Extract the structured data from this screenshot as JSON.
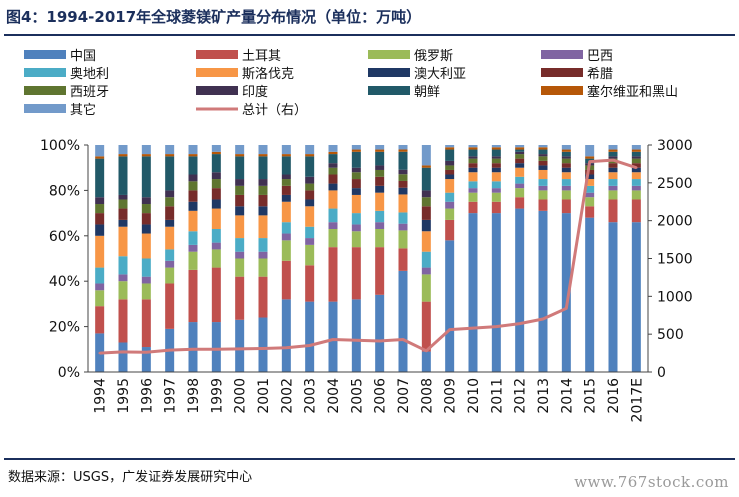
{
  "header": {
    "title": "图4：1994-2017年全球菱镁矿产量分布情况（单位：万吨）"
  },
  "footer": {
    "source": "数据来源：USGS，广发证券发展研究中心",
    "watermark": "www.767stock.com"
  },
  "chart_data": {
    "type": "bar",
    "stacked": true,
    "categories": [
      "1994",
      "1995",
      "1996",
      "1997",
      "1998",
      "1999",
      "2000",
      "2001",
      "2002",
      "2003",
      "2004",
      "2005",
      "2006",
      "2007",
      "2008",
      "2009",
      "2010",
      "2011",
      "2012",
      "2013",
      "2014",
      "2015",
      "2016",
      "2017E"
    ],
    "ylim_left": [
      0,
      100
    ],
    "yticks_left": [
      "0%",
      "20%",
      "40%",
      "60%",
      "80%",
      "100%"
    ],
    "ylim_right": [
      0,
      3000
    ],
    "yticks_right": [
      "0",
      "500",
      "1000",
      "1500",
      "2000",
      "2500",
      "3000"
    ],
    "legend_position": "top",
    "series": [
      {
        "name": "中国",
        "color": "#4f81bd",
        "values": [
          17,
          13,
          11,
          19,
          22,
          22,
          23,
          24,
          32,
          31,
          31,
          32,
          34,
          45,
          9,
          58,
          70,
          70,
          72,
          71,
          70,
          68,
          66,
          66
        ]
      },
      {
        "name": "土耳其",
        "color": "#c0504d",
        "values": [
          12,
          19,
          21,
          20,
          23,
          24,
          19,
          18,
          17,
          16,
          24,
          23,
          21,
          10,
          22,
          9,
          5,
          5,
          5,
          5,
          6,
          5,
          10,
          10
        ]
      },
      {
        "name": "俄罗斯",
        "color": "#9bbb59",
        "values": [
          7,
          8,
          7,
          7,
          8,
          8,
          8,
          8,
          9,
          9,
          8,
          7,
          8,
          8,
          12,
          5,
          4,
          4,
          4,
          4,
          4,
          4,
          4,
          4
        ]
      },
      {
        "name": "巴西",
        "color": "#8064a2",
        "values": [
          3,
          3,
          3,
          3,
          3,
          3,
          3,
          3,
          3,
          3,
          3,
          3,
          3,
          3,
          3,
          3,
          2,
          2,
          2,
          2,
          2,
          2,
          2,
          2
        ]
      },
      {
        "name": "奥地利",
        "color": "#4bacc6",
        "values": [
          7,
          8,
          8,
          5,
          6,
          6,
          6,
          6,
          5,
          5,
          6,
          5,
          5,
          5,
          7,
          4,
          3,
          3,
          3,
          3,
          3,
          3,
          3,
          3
        ]
      },
      {
        "name": "斯洛伐克",
        "color": "#f79646",
        "values": [
          14,
          13,
          11,
          10,
          9,
          9,
          10,
          10,
          9,
          9,
          8,
          8,
          8,
          8,
          9,
          6,
          4,
          4,
          4,
          4,
          3,
          3,
          3,
          3
        ]
      },
      {
        "name": "澳大利亚",
        "color": "#1f3864",
        "values": [
          5,
          3,
          4,
          3,
          4,
          4,
          4,
          4,
          3,
          3,
          3,
          3,
          3,
          3,
          5,
          2,
          2,
          2,
          2,
          2,
          2,
          2,
          2,
          2
        ]
      },
      {
        "name": "希腊",
        "color": "#772c2a",
        "values": [
          5,
          5,
          5,
          6,
          5,
          5,
          5,
          5,
          4,
          4,
          4,
          4,
          4,
          3,
          6,
          2,
          2,
          2,
          2,
          2,
          2,
          2,
          2,
          2
        ]
      },
      {
        "name": "西班牙",
        "color": "#5f7530",
        "values": [
          4,
          4,
          4,
          4,
          4,
          4,
          4,
          4,
          3,
          3,
          3,
          3,
          3,
          3,
          4,
          2,
          2,
          2,
          2,
          2,
          2,
          2,
          2,
          2
        ]
      },
      {
        "name": "印度",
        "color": "#403151",
        "values": [
          3,
          2,
          3,
          3,
          3,
          3,
          3,
          3,
          2,
          3,
          2,
          2,
          2,
          2,
          3,
          2,
          1,
          1,
          1,
          1,
          1,
          1,
          1,
          1
        ]
      },
      {
        "name": "朝鲜",
        "color": "#215968",
        "values": [
          17,
          17,
          18,
          15,
          8,
          8,
          10,
          10,
          8,
          9,
          4,
          7,
          6,
          8,
          10,
          5,
          3,
          3,
          1,
          2,
          2,
          2,
          2,
          2
        ]
      },
      {
        "name": "塞尔维亚和黑山",
        "color": "#b65708",
        "values": [
          1,
          1,
          1,
          1,
          1,
          1,
          1,
          1,
          1,
          1,
          1,
          1,
          1,
          1,
          1,
          1,
          1,
          1,
          1,
          1,
          1,
          1,
          1,
          1
        ]
      },
      {
        "name": "其它",
        "color": "#729aca",
        "values": [
          5,
          4,
          4,
          4,
          4,
          3,
          4,
          4,
          4,
          4,
          3,
          2,
          2,
          2,
          9,
          1,
          1,
          1,
          1,
          1,
          2,
          5,
          2,
          2
        ]
      }
    ],
    "line": {
      "name": "总计（右）",
      "color": "#d07a7a",
      "axis": "right",
      "values": [
        250,
        265,
        260,
        290,
        300,
        300,
        305,
        310,
        320,
        350,
        430,
        420,
        410,
        430,
        280,
        560,
        580,
        600,
        640,
        700,
        840,
        2780,
        2800,
        2700
      ]
    }
  }
}
